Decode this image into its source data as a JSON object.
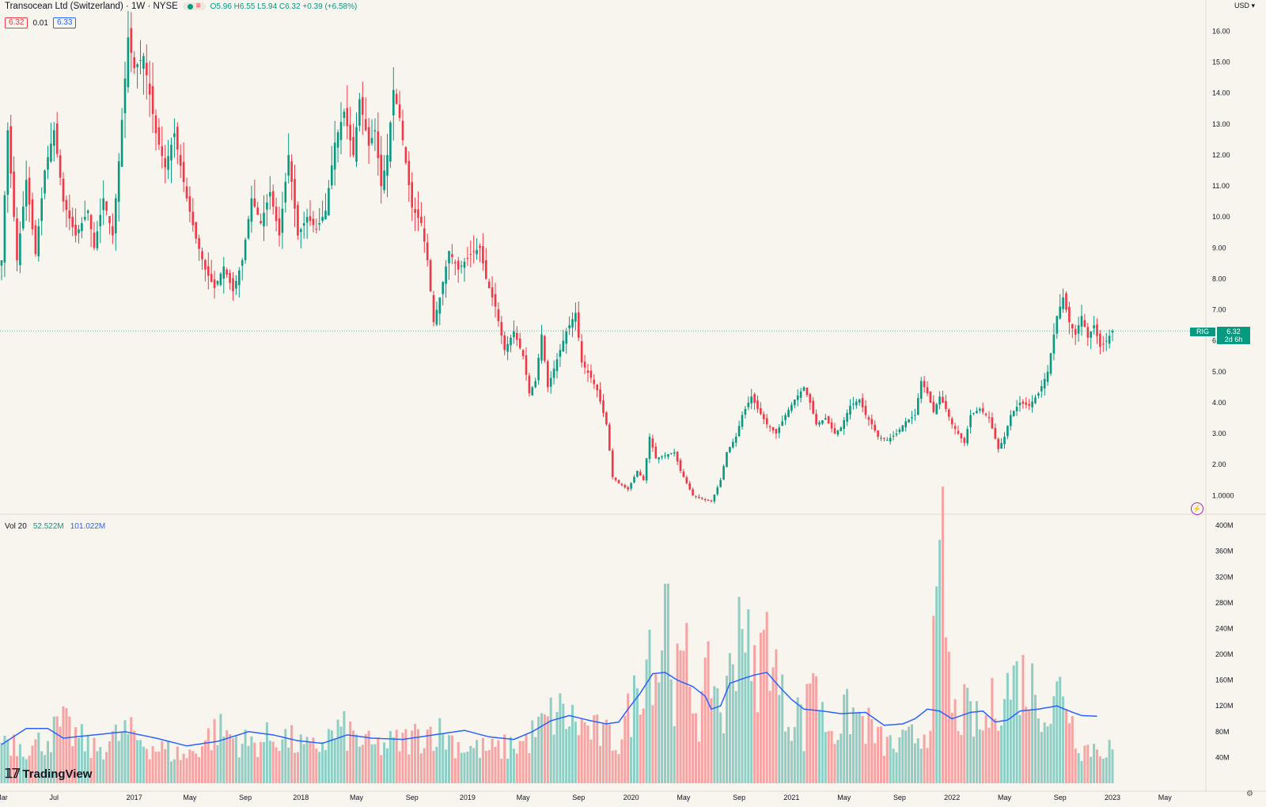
{
  "header": {
    "symbol_title": "Transocean Ltd (Switzerland) · 1W · NYSE",
    "ohlc": "O5.96 H6.55 L5.94 C6.32 +0.39 (+6.58%)",
    "bid": "6.32",
    "spread": "0.01",
    "ask": "6.33",
    "currency": "USD",
    "status_icon": "market-status-dot",
    "menu_icon": "equals-menu-icon"
  },
  "price_tag": {
    "symbol": "RIG",
    "price": "6.32",
    "countdown": "2d 6h"
  },
  "volume_legend": {
    "label": "Vol 20",
    "vol": "52.522M",
    "ma": "101.022M"
  },
  "branding": {
    "logo_text": "TradingView"
  },
  "colors": {
    "background": "#f8f5ee",
    "up": "#089981",
    "down": "#f23645",
    "up_volume": "#8fcec4",
    "down_volume": "#f5a3a3",
    "ma_line": "#2962ff"
  },
  "chart_data": {
    "type": "candlestick",
    "interval": "1W",
    "price_axis": {
      "range": [
        0.6,
        16.7
      ],
      "tick_labels": [
        "16.00",
        "15.00",
        "14.00",
        "13.00",
        "12.00",
        "11.00",
        "10.00",
        "9.00",
        "8.00",
        "7.00",
        "6.00",
        "5.00",
        "4.00",
        "3.00",
        "2.00",
        "1.0000"
      ],
      "tick_values": [
        16,
        15,
        14,
        13,
        12,
        11,
        10,
        9,
        8,
        7,
        6,
        5,
        4,
        3,
        2,
        1
      ]
    },
    "volume_axis": {
      "range": [
        0,
        405
      ],
      "unit": "M",
      "tick_labels": [
        "400M",
        "360M",
        "320M",
        "280M",
        "240M",
        "200M",
        "160M",
        "120M",
        "80M",
        "40M"
      ],
      "tick_values": [
        400,
        360,
        320,
        280,
        240,
        200,
        160,
        120,
        80,
        40
      ]
    },
    "x_axis": {
      "labels": [
        "Mar",
        "Jul",
        "2017",
        "May",
        "Sep",
        "2018",
        "May",
        "Sep",
        "2019",
        "May",
        "Sep",
        "2020",
        "May",
        "Sep",
        "2021",
        "May",
        "Sep",
        "2022",
        "May",
        "Sep",
        "2023",
        "May"
      ],
      "week_index": [
        0,
        17,
        43,
        61,
        79,
        97,
        115,
        133,
        151,
        169,
        187,
        204,
        221,
        239,
        256,
        273,
        291,
        308,
        325,
        343,
        360,
        377
      ]
    },
    "weeks": 381,
    "price_anchors": [
      [
        0,
        8.6
      ],
      [
        2,
        12.8
      ],
      [
        5,
        8.6
      ],
      [
        8,
        11.2
      ],
      [
        11,
        8.8
      ],
      [
        14,
        11.5
      ],
      [
        17,
        12.8
      ],
      [
        20,
        10.5
      ],
      [
        24,
        9.4
      ],
      [
        28,
        10.2
      ],
      [
        30,
        9.0
      ],
      [
        33,
        10.6
      ],
      [
        36,
        9.4
      ],
      [
        38,
        11.8
      ],
      [
        41,
        15.8
      ],
      [
        43,
        14.8
      ],
      [
        46,
        15.2
      ],
      [
        50,
        12.7
      ],
      [
        53,
        11.6
      ],
      [
        56,
        12.7
      ],
      [
        60,
        10.6
      ],
      [
        63,
        9.3
      ],
      [
        66,
        8.3
      ],
      [
        69,
        7.7
      ],
      [
        72,
        8.4
      ],
      [
        75,
        7.6
      ],
      [
        78,
        8.6
      ],
      [
        81,
        10.6
      ],
      [
        84,
        9.8
      ],
      [
        87,
        10.8
      ],
      [
        90,
        9.4
      ],
      [
        93,
        12.0
      ],
      [
        96,
        9.4
      ],
      [
        99,
        10.0
      ],
      [
        102,
        9.6
      ],
      [
        105,
        10.2
      ],
      [
        108,
        12.4
      ],
      [
        111,
        13.4
      ],
      [
        114,
        12.0
      ],
      [
        116,
        13.8
      ],
      [
        119,
        12.3
      ],
      [
        121,
        12.8
      ],
      [
        123,
        11.0
      ],
      [
        125,
        12.0
      ],
      [
        127,
        14.1
      ],
      [
        129,
        13.2
      ],
      [
        133,
        10.3
      ],
      [
        136,
        9.8
      ],
      [
        138,
        8.6
      ],
      [
        140,
        6.6
      ],
      [
        142,
        7.4
      ],
      [
        145,
        8.9
      ],
      [
        148,
        8.3
      ],
      [
        152,
        8.8
      ],
      [
        155,
        9.0
      ],
      [
        157,
        8.0
      ],
      [
        160,
        7.1
      ],
      [
        163,
        5.7
      ],
      [
        166,
        6.3
      ],
      [
        169,
        5.5
      ],
      [
        171,
        4.3
      ],
      [
        173,
        4.7
      ],
      [
        175,
        6.2
      ],
      [
        177,
        4.5
      ],
      [
        180,
        5.4
      ],
      [
        183,
        6.3
      ],
      [
        186,
        6.9
      ],
      [
        188,
        5.3
      ],
      [
        191,
        4.8
      ],
      [
        193,
        4.4
      ],
      [
        196,
        3.3
      ],
      [
        198,
        1.6
      ],
      [
        200,
        1.4
      ],
      [
        203,
        1.2
      ],
      [
        206,
        1.8
      ],
      [
        208,
        1.5
      ],
      [
        210,
        2.9
      ],
      [
        212,
        2.2
      ],
      [
        215,
        2.3
      ],
      [
        218,
        2.4
      ],
      [
        220,
        1.8
      ],
      [
        224,
        1.0
      ],
      [
        227,
        0.9
      ],
      [
        230,
        0.8
      ],
      [
        233,
        1.5
      ],
      [
        235,
        2.4
      ],
      [
        238,
        2.9
      ],
      [
        240,
        3.6
      ],
      [
        243,
        4.2
      ],
      [
        245,
        3.8
      ],
      [
        248,
        3.3
      ],
      [
        251,
        3.0
      ],
      [
        254,
        3.6
      ],
      [
        257,
        4.1
      ],
      [
        260,
        4.5
      ],
      [
        262,
        4.0
      ],
      [
        264,
        3.3
      ],
      [
        267,
        3.5
      ],
      [
        270,
        3.0
      ],
      [
        272,
        3.2
      ],
      [
        275,
        3.9
      ],
      [
        278,
        4.1
      ],
      [
        280,
        3.6
      ],
      [
        282,
        3.3
      ],
      [
        284,
        2.9
      ],
      [
        287,
        2.8
      ],
      [
        290,
        3.0
      ],
      [
        293,
        3.4
      ],
      [
        296,
        3.6
      ],
      [
        298,
        4.7
      ],
      [
        300,
        4.3
      ],
      [
        302,
        3.7
      ],
      [
        304,
        4.2
      ],
      [
        306,
        3.8
      ],
      [
        308,
        3.3
      ],
      [
        310,
        3.0
      ],
      [
        312,
        2.7
      ],
      [
        314,
        3.6
      ],
      [
        317,
        3.8
      ],
      [
        320,
        3.5
      ],
      [
        323,
        2.5
      ],
      [
        325,
        2.9
      ],
      [
        327,
        3.6
      ],
      [
        330,
        4.0
      ],
      [
        333,
        3.9
      ],
      [
        336,
        4.3
      ],
      [
        339,
        5.0
      ],
      [
        342,
        6.8
      ],
      [
        344,
        7.4
      ],
      [
        346,
        6.6
      ],
      [
        348,
        6.2
      ],
      [
        350,
        6.8
      ],
      [
        352,
        6.1
      ],
      [
        354,
        6.5
      ],
      [
        356,
        5.8
      ],
      [
        358,
        6.0
      ],
      [
        360,
        6.32
      ]
    ],
    "last_price": 6.32,
    "volume_anchors": [
      [
        0,
        80
      ],
      [
        10,
        60
      ],
      [
        20,
        95
      ],
      [
        30,
        55
      ],
      [
        40,
        85
      ],
      [
        50,
        60
      ],
      [
        60,
        45
      ],
      [
        70,
        90
      ],
      [
        80,
        65
      ],
      [
        90,
        80
      ],
      [
        100,
        55
      ],
      [
        110,
        90
      ],
      [
        120,
        60
      ],
      [
        130,
        70
      ],
      [
        140,
        90
      ],
      [
        150,
        60
      ],
      [
        160,
        55
      ],
      [
        170,
        70
      ],
      [
        180,
        120
      ],
      [
        190,
        90
      ],
      [
        200,
        70
      ],
      [
        205,
        140
      ],
      [
        210,
        240
      ],
      [
        213,
        180
      ],
      [
        215,
        350
      ],
      [
        218,
        160
      ],
      [
        222,
        200
      ],
      [
        226,
        110
      ],
      [
        230,
        190
      ],
      [
        234,
        110
      ],
      [
        238,
        250
      ],
      [
        240,
        330
      ],
      [
        243,
        160
      ],
      [
        246,
        210
      ],
      [
        249,
        260
      ],
      [
        252,
        150
      ],
      [
        255,
        110
      ],
      [
        258,
        130
      ],
      [
        260,
        80
      ],
      [
        263,
        220
      ],
      [
        266,
        110
      ],
      [
        270,
        90
      ],
      [
        275,
        120
      ],
      [
        280,
        100
      ],
      [
        285,
        70
      ],
      [
        290,
        60
      ],
      [
        300,
        90
      ],
      [
        305,
        370
      ],
      [
        308,
        110
      ],
      [
        312,
        120
      ],
      [
        318,
        90
      ],
      [
        322,
        140
      ],
      [
        330,
        180
      ],
      [
        336,
        150
      ],
      [
        340,
        110
      ],
      [
        344,
        180
      ],
      [
        347,
        100
      ],
      [
        350,
        60
      ]
    ],
    "volume_ma_anchors": [
      [
        0,
        60
      ],
      [
        8,
        85
      ],
      [
        15,
        85
      ],
      [
        20,
        70
      ],
      [
        30,
        75
      ],
      [
        40,
        80
      ],
      [
        50,
        70
      ],
      [
        60,
        58
      ],
      [
        70,
        65
      ],
      [
        80,
        80
      ],
      [
        88,
        75
      ],
      [
        96,
        66
      ],
      [
        104,
        62
      ],
      [
        112,
        75
      ],
      [
        120,
        70
      ],
      [
        130,
        68
      ],
      [
        140,
        75
      ],
      [
        150,
        82
      ],
      [
        158,
        72
      ],
      [
        166,
        68
      ],
      [
        172,
        80
      ],
      [
        178,
        97
      ],
      [
        184,
        105
      ],
      [
        190,
        98
      ],
      [
        196,
        92
      ],
      [
        200,
        95
      ],
      [
        203,
        115
      ],
      [
        207,
        140
      ],
      [
        211,
        170
      ],
      [
        215,
        172
      ],
      [
        219,
        160
      ],
      [
        224,
        150
      ],
      [
        228,
        135
      ],
      [
        230,
        115
      ],
      [
        233,
        120
      ],
      [
        236,
        155
      ],
      [
        240,
        162
      ],
      [
        244,
        168
      ],
      [
        248,
        172
      ],
      [
        252,
        150
      ],
      [
        256,
        130
      ],
      [
        260,
        115
      ],
      [
        266,
        112
      ],
      [
        272,
        108
      ],
      [
        280,
        110
      ],
      [
        286,
        90
      ],
      [
        292,
        92
      ],
      [
        296,
        100
      ],
      [
        300,
        115
      ],
      [
        304,
        112
      ],
      [
        308,
        100
      ],
      [
        314,
        110
      ],
      [
        318,
        112
      ],
      [
        322,
        95
      ],
      [
        326,
        98
      ],
      [
        330,
        112
      ],
      [
        336,
        115
      ],
      [
        342,
        120
      ],
      [
        346,
        112
      ],
      [
        350,
        105
      ],
      [
        355,
        104
      ]
    ],
    "volume_ma_last_week": 355,
    "last_volume": 52.522,
    "last_volume_ma": 101.022
  }
}
